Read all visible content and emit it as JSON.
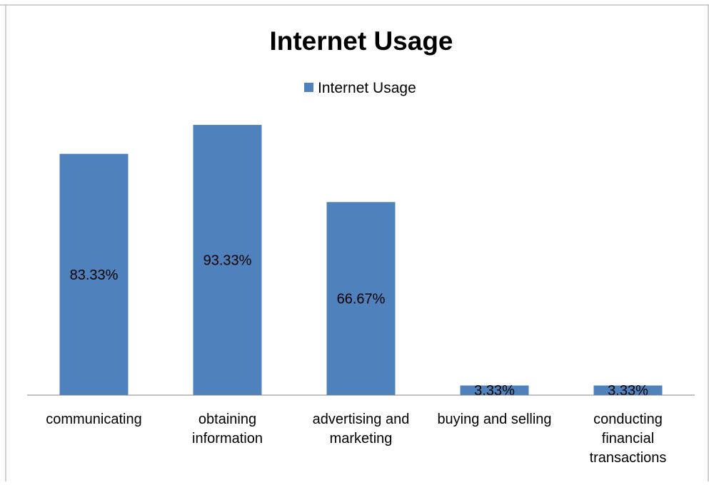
{
  "chart_data": {
    "type": "bar",
    "title": "Internet Usage",
    "legend": {
      "position": "top",
      "entries": [
        "Internet Usage"
      ]
    },
    "xlabel": "",
    "ylabel": "",
    "ylim": [
      0,
      100
    ],
    "grid": false,
    "axis_visible": false,
    "categories": [
      [
        "communicating"
      ],
      [
        "obtaining",
        "information"
      ],
      [
        "advertising and",
        "marketing"
      ],
      [
        "buying and selling"
      ],
      [
        "conducting",
        "financial",
        "transactions"
      ]
    ],
    "series": [
      {
        "name": "Internet Usage",
        "color": "#4F81BD",
        "values": [
          83.33,
          93.33,
          66.67,
          3.33,
          3.33
        ],
        "labels": [
          "83.33%",
          "93.33%",
          "66.67%",
          "3.33%",
          "3.33%"
        ]
      }
    ]
  }
}
